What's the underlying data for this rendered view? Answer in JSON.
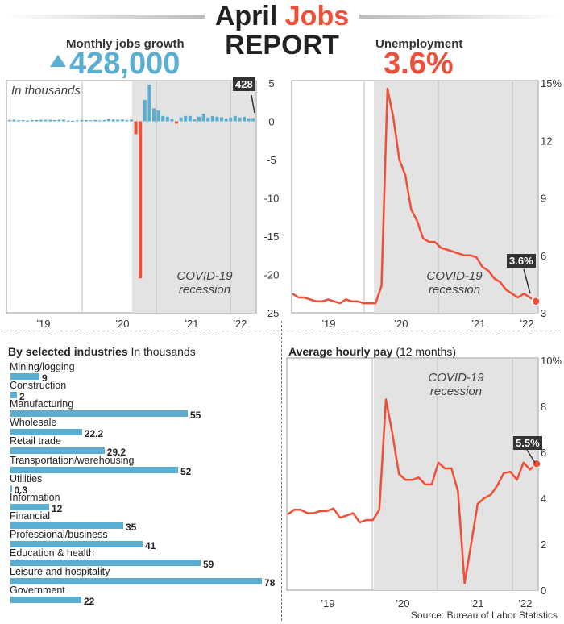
{
  "header": {
    "title_part1": "April",
    "title_part2": "Jobs",
    "title_line2": "REPORT",
    "jobs_label": "Monthly jobs growth",
    "jobs_value": "428,000",
    "unemp_label": "Unemployment",
    "unemp_value": "3.6%"
  },
  "colors": {
    "accent_blue": "#5aaed2",
    "accent_red": "#f04e37",
    "recession_shade": "#e3e3e3"
  },
  "icons": {
    "up_arrow": "up-triangle-icon"
  },
  "source": "Source: Bureau of Labor Statistics",
  "chart_data": [
    {
      "type": "bar",
      "name": "monthly-jobs-growth",
      "subtitle": "In thousands",
      "annotation": "COVID-19 recession",
      "callout": "428",
      "ylim": [
        -25,
        5
      ],
      "yticks": [
        "5",
        "0",
        "-5",
        "-10",
        "-15",
        "-20",
        "-25"
      ],
      "xticks": [
        "'19",
        "'20",
        "'21",
        "'22"
      ],
      "values": [
        0.17,
        0.2,
        0.12,
        0.15,
        0.1,
        0.15,
        0.18,
        0.18,
        0.2,
        0.19,
        0.16,
        0.21,
        0.21,
        0.09,
        0.07,
        0.12,
        0.17,
        0.16,
        0.13,
        0.18,
        0.13,
        0.17,
        0.26,
        0.24,
        0.22,
        0.25,
        0.15,
        0.23,
        -1.68,
        -20.5,
        2.8,
        4.8,
        1.7,
        1.4,
        0.7,
        0.6,
        0.3,
        -0.3,
        0.5,
        0.7,
        0.7,
        0.27,
        0.6,
        1.0,
        0.5,
        0.7,
        0.6,
        0.55,
        0.35,
        0.5,
        0.7,
        0.5,
        0.6,
        0.4,
        0.43
      ],
      "recession_start_index": 28
    },
    {
      "type": "line",
      "name": "unemployment-rate",
      "annotation": "COVID-19 recession",
      "callout": "3.6%",
      "ylim": [
        3,
        15
      ],
      "yticks": [
        "15%",
        "12",
        "9",
        "6",
        "3"
      ],
      "xticks": [
        "'19",
        "'20",
        "'21",
        "'22"
      ],
      "values": [
        4.0,
        3.8,
        3.8,
        3.7,
        3.6,
        3.6,
        3.7,
        3.6,
        3.5,
        3.7,
        3.6,
        3.6,
        3.5,
        3.5,
        3.5,
        4.4,
        14.7,
        13.2,
        11.0,
        10.2,
        8.4,
        7.8,
        6.9,
        6.7,
        6.7,
        6.4,
        6.3,
        6.2,
        6.1,
        6.0,
        6.0,
        5.9,
        5.4,
        5.2,
        4.8,
        4.6,
        4.2,
        4.0,
        3.8,
        4.0,
        3.8,
        3.6
      ],
      "recession_start_index": 14
    },
    {
      "type": "bar",
      "name": "jobs-by-industry",
      "title": "By selected industries",
      "subtitle": "In thousands",
      "categories": [
        "Mining/logging",
        "Construction",
        "Manufacturing",
        "Wholesale",
        "Retail trade",
        "Transportation/warehousing",
        "Utilities",
        "Information",
        "Financial",
        "Professional/business",
        "Education & health",
        "Leisure and hospitality",
        "Government"
      ],
      "values": [
        9,
        2,
        55,
        22.2,
        29.2,
        52,
        0.3,
        12,
        35,
        41,
        59,
        78,
        22
      ],
      "labels": [
        "9",
        "2",
        "55",
        "22.2",
        "29.2",
        "52",
        "0.3",
        "12",
        "35",
        "41",
        "59",
        "78",
        "22"
      ]
    },
    {
      "type": "line",
      "name": "average-hourly-pay",
      "title": "Average hourly pay",
      "subtitle": "(12 months)",
      "annotation": "COVID-19 recession",
      "callout": "5.5%",
      "ylim": [
        0,
        10
      ],
      "yticks": [
        "10%",
        "8",
        "6",
        "4",
        "2",
        "0"
      ],
      "xticks": [
        "'19",
        "'20",
        "'21",
        "'22"
      ],
      "values": [
        3.3,
        3.5,
        3.5,
        3.35,
        3.35,
        3.45,
        3.45,
        3.55,
        3.15,
        3.25,
        3.35,
        2.95,
        3.05,
        3.05,
        3.5,
        8.3,
        6.8,
        5.05,
        4.8,
        4.8,
        4.9,
        4.6,
        4.6,
        5.55,
        5.3,
        5.3,
        4.3,
        0.3,
        2.0,
        3.75,
        4.0,
        4.15,
        4.55,
        5.1,
        5.15,
        4.8,
        5.55,
        5.25,
        5.5
      ],
      "recession_start_index": 13
    }
  ]
}
